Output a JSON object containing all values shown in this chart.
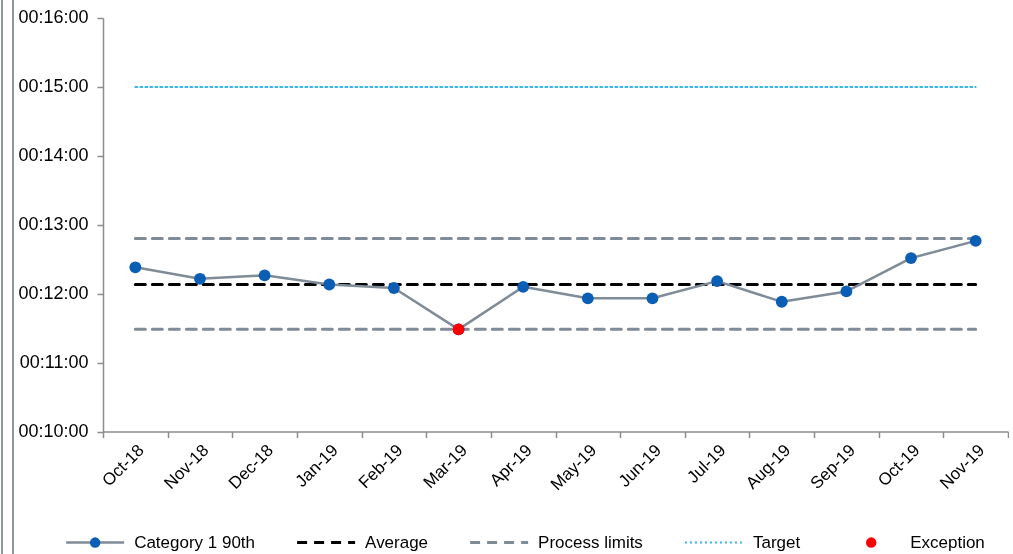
{
  "chart_data": {
    "type": "line",
    "categories": [
      "Oct-18",
      "Nov-18",
      "Dec-18",
      "Jan-19",
      "Feb-19",
      "Mar-19",
      "Apr-19",
      "May-19",
      "Jun-19",
      "Jul-19",
      "Aug-19",
      "Sep-19",
      "Oct-19",
      "Nov-19"
    ],
    "series": [
      {
        "name": "Category 1 90th",
        "color": "#7f8b97",
        "colors": [
          "#0a5fb4",
          "#0a5fb4",
          "#0a5fb4",
          "#0a5fb4",
          "#0a5fb4",
          "#0a5fb4",
          "#0a5fb4",
          "#0a5fb4",
          "#0a5fb4",
          "#0a5fb4",
          "#0a5fb4",
          "#0a5fb4",
          "#0a5fb4",
          "#0a5fb4"
        ],
        "values": [
          743,
          733,
          736,
          728,
          725,
          689,
          726,
          716,
          716,
          731,
          713,
          722,
          751,
          766
        ]
      },
      {
        "name": "Exception",
        "type": "scatter",
        "color": "#ff0000",
        "values": [
          null,
          null,
          null,
          null,
          null,
          689,
          null,
          null,
          null,
          null,
          null,
          null,
          null,
          null
        ]
      }
    ],
    "ref_lines": [
      {
        "axis": "y",
        "value": 728,
        "label": "Average",
        "color": "#000000",
        "line_style": "dashed"
      },
      {
        "axis": "y",
        "value": 768,
        "label": "Process limits",
        "color": "#7f8b97",
        "line_style": "dashed"
      },
      {
        "axis": "y",
        "value": 689,
        "label": null,
        "color": "#7f8b97",
        "line_style": "dashed"
      },
      {
        "axis": "y",
        "value": 900,
        "label": "Target",
        "color": "#3cb4e6",
        "line_style": "dotted"
      }
    ],
    "ylim": [
      600,
      960
    ],
    "yticks": [
      {
        "value": 600,
        "label": "00:10:00"
      },
      {
        "value": 660,
        "label": "00:11:00"
      },
      {
        "value": 720,
        "label": "00:12:00"
      },
      {
        "value": 780,
        "label": "00:13:00"
      },
      {
        "value": 840,
        "label": "00:14:00"
      },
      {
        "value": 900,
        "label": "00:15:00"
      },
      {
        "value": 960,
        "label": "00:16:00"
      }
    ],
    "marker": "circle",
    "grid": false,
    "legend": "bottom"
  }
}
